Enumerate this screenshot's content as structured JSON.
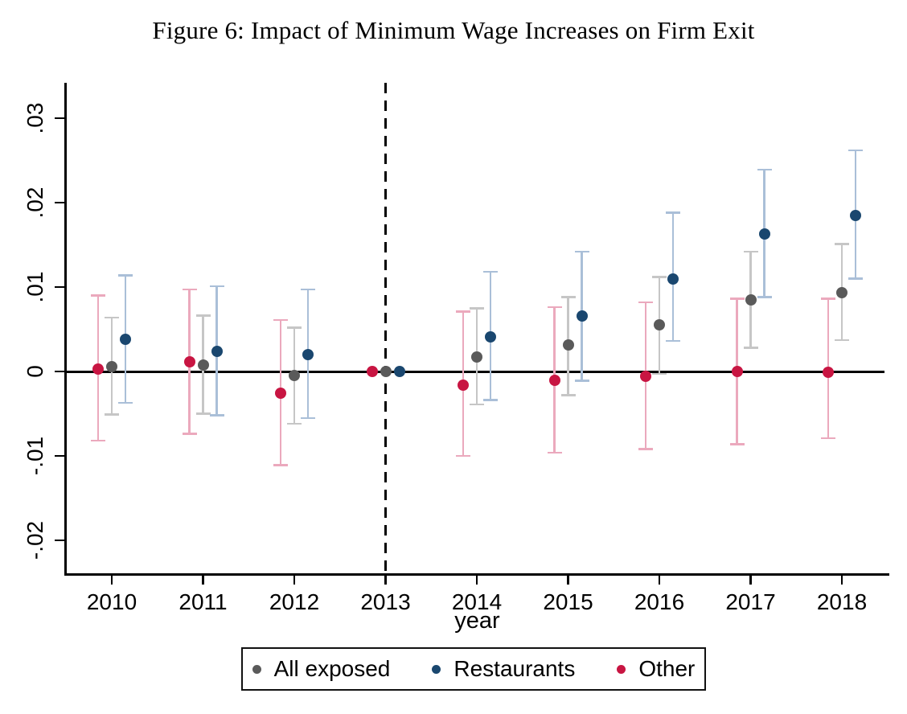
{
  "figure_title": "Figure 6: Impact of Minimum Wage Increases on Firm Exit",
  "chart_data": {
    "type": "scatter",
    "subtype": "event-study coefficient plot with confidence intervals",
    "title": "Figure 6: Impact of Minimum Wage Increases on Firm Exit",
    "xlabel": "year",
    "ylabel": "",
    "x_values": [
      2010,
      2011,
      2012,
      2013,
      2014,
      2015,
      2016,
      2017,
      2018
    ],
    "x_tick_labels": [
      "2010",
      "2011",
      "2012",
      "2013",
      "2014",
      "2015",
      "2016",
      "2017",
      "2018"
    ],
    "ylim": [
      -0.0239,
      0.0342
    ],
    "yticks": [
      0.03,
      0.02,
      0.01,
      0,
      -0.01,
      -0.02
    ],
    "ytick_labels": [
      ".03",
      ".02",
      ".01",
      "0",
      "-.01",
      "-.02"
    ],
    "grid": false,
    "zero_reference_line_y": 0,
    "dashed_event_line_x": 2013,
    "legend_position": "bottom-center",
    "axis_color": "#000000",
    "series": [
      {
        "name": "All exposed",
        "marker_color": "#5a5a5a",
        "ci_color": "#c6c6c6",
        "dx": 0,
        "points": [
          {
            "x": 2010,
            "est": 0.0006,
            "lo": -0.0051,
            "hi": 0.0064
          },
          {
            "x": 2011,
            "est": 0.0008,
            "lo": -0.005,
            "hi": 0.0066
          },
          {
            "x": 2012,
            "est": -0.0005,
            "lo": -0.0062,
            "hi": 0.0052
          },
          {
            "x": 2013,
            "est": 0.0,
            "lo": 0.0,
            "hi": 0.0
          },
          {
            "x": 2014,
            "est": 0.0017,
            "lo": -0.0039,
            "hi": 0.0075
          },
          {
            "x": 2015,
            "est": 0.0031,
            "lo": -0.0028,
            "hi": 0.0088
          },
          {
            "x": 2016,
            "est": 0.0055,
            "lo": -0.0003,
            "hi": 0.0112
          },
          {
            "x": 2017,
            "est": 0.0085,
            "lo": 0.0028,
            "hi": 0.0142
          },
          {
            "x": 2018,
            "est": 0.0093,
            "lo": 0.0037,
            "hi": 0.0151
          }
        ]
      },
      {
        "name": "Restaurants",
        "marker_color": "#1a476f",
        "ci_color": "#aabfd8",
        "dx": 17,
        "points": [
          {
            "x": 2010,
            "est": 0.0038,
            "lo": -0.0037,
            "hi": 0.0114
          },
          {
            "x": 2011,
            "est": 0.0024,
            "lo": -0.0052,
            "hi": 0.0101
          },
          {
            "x": 2012,
            "est": 0.002,
            "lo": -0.0055,
            "hi": 0.0097
          },
          {
            "x": 2013,
            "est": 0.0,
            "lo": 0.0,
            "hi": 0.0
          },
          {
            "x": 2014,
            "est": 0.0041,
            "lo": -0.0034,
            "hi": 0.0118
          },
          {
            "x": 2015,
            "est": 0.0066,
            "lo": -0.0011,
            "hi": 0.0142
          },
          {
            "x": 2016,
            "est": 0.011,
            "lo": 0.0036,
            "hi": 0.0188
          },
          {
            "x": 2017,
            "est": 0.0163,
            "lo": 0.0088,
            "hi": 0.0239
          },
          {
            "x": 2018,
            "est": 0.0185,
            "lo": 0.011,
            "hi": 0.0262
          }
        ]
      },
      {
        "name": "Other",
        "marker_color": "#c81542",
        "ci_color": "#eba9bd",
        "dx": -17,
        "points": [
          {
            "x": 2010,
            "est": 0.0003,
            "lo": -0.0082,
            "hi": 0.009
          },
          {
            "x": 2011,
            "est": 0.0011,
            "lo": -0.0074,
            "hi": 0.0097
          },
          {
            "x": 2012,
            "est": -0.0026,
            "lo": -0.0111,
            "hi": 0.0061
          },
          {
            "x": 2013,
            "est": 0.0,
            "lo": 0.0,
            "hi": 0.0
          },
          {
            "x": 2014,
            "est": -0.0016,
            "lo": -0.01,
            "hi": 0.0071
          },
          {
            "x": 2015,
            "est": -0.001,
            "lo": -0.0096,
            "hi": 0.0076
          },
          {
            "x": 2016,
            "est": -0.0006,
            "lo": -0.0092,
            "hi": 0.0082
          },
          {
            "x": 2017,
            "est": 0.0,
            "lo": -0.0086,
            "hi": 0.0086
          },
          {
            "x": 2018,
            "est": -0.0001,
            "lo": -0.0079,
            "hi": 0.0086
          }
        ]
      }
    ],
    "legend_entries": [
      "All exposed",
      "Restaurants",
      "Other"
    ]
  }
}
